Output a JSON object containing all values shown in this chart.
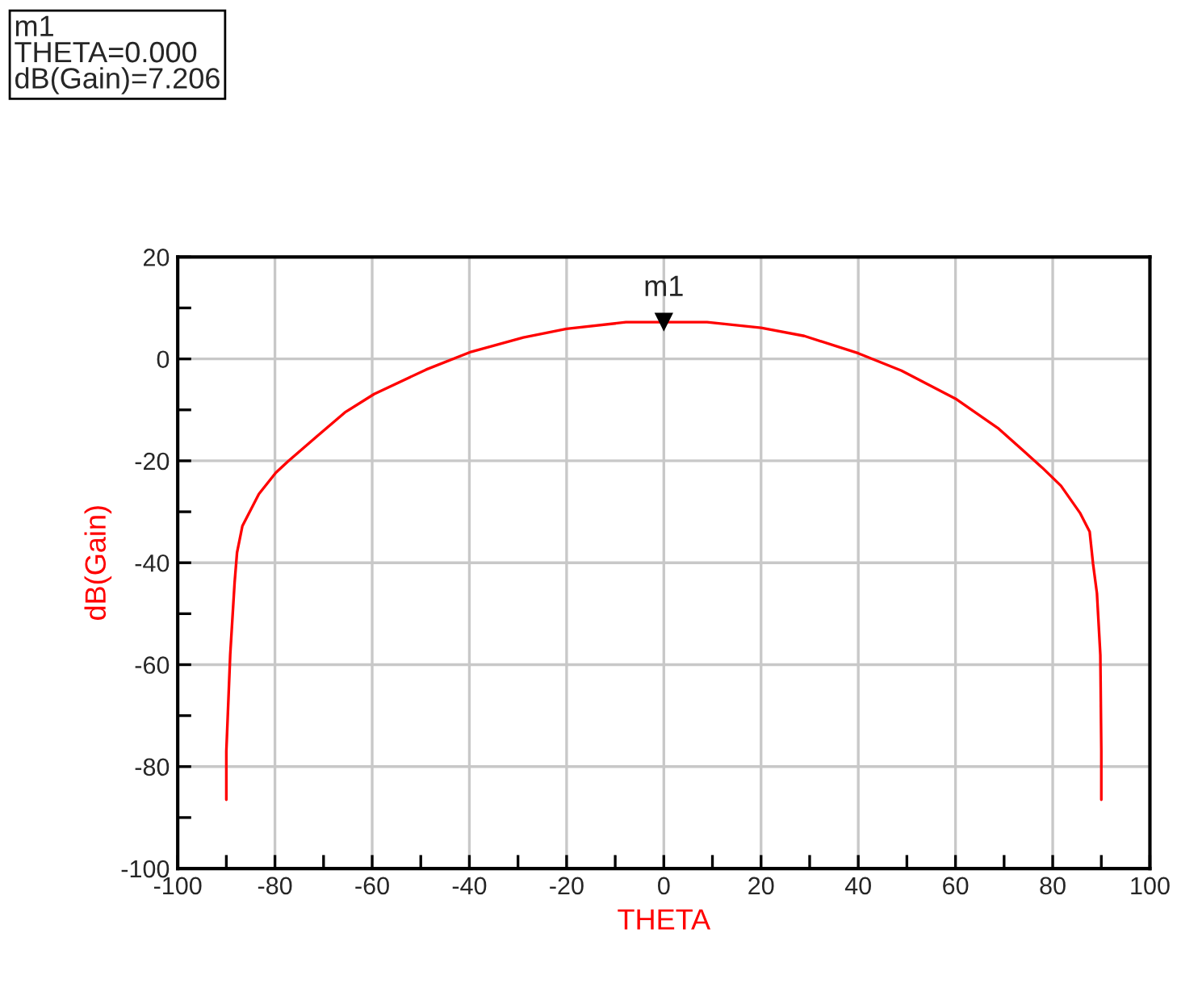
{
  "chart_data": {
    "type": "line",
    "xlabel": "THETA",
    "ylabel": "dB(Gain)",
    "x": [
      -90,
      -90,
      -89.2,
      -88.3,
      -87.8,
      -86.7,
      -83.3,
      -79.8,
      -77.2,
      -71.1,
      -65.6,
      -59.6,
      -48.9,
      -39.6,
      -28.9,
      -20,
      -7.8,
      0,
      8.9,
      20,
      28.9,
      40,
      48.9,
      60,
      68.9,
      77.8,
      81.7,
      85.6,
      87.6,
      88.3,
      89.1,
      89.8,
      90,
      90
    ],
    "series": [
      {
        "color": "#ff0000",
        "marker": "none",
        "line_style": "solid",
        "values": [
          -86.5,
          -77,
          -58,
          -43.9,
          -38,
          -32.8,
          -26.5,
          -22.3,
          -20,
          -15,
          -10.5,
          -6.9,
          -2.1,
          1.4,
          4.2,
          5.9,
          7.2,
          7.206,
          7.2,
          6.1,
          4.5,
          1.1,
          -2.3,
          -7.8,
          -13.7,
          -21.3,
          -24.9,
          -30.2,
          -33.9,
          -40.2,
          -46,
          -58.1,
          -77,
          -86.5
        ]
      },
      {
        "type": "scatter",
        "color": "#000000",
        "marker": "triangle",
        "x": [
          0
        ],
        "values": [
          7.206
        ]
      }
    ],
    "annotations": [
      {
        "text": "m1",
        "x": 0,
        "y": 7.206
      },
      "m1\nTHETA=0.000\ndB(Gain)=7.206"
    ],
    "xlim": [
      -100,
      100
    ],
    "ylim": [
      -100,
      20
    ],
    "xticks": [
      -100,
      {
        "value": -90,
        "label": null
      },
      -80,
      {
        "value": -70,
        "label": null
      },
      -60,
      {
        "value": -50,
        "label": null
      },
      -40,
      {
        "value": -30,
        "label": null
      },
      -20,
      {
        "value": -10,
        "label": null
      },
      0,
      {
        "value": 10,
        "label": null
      },
      20,
      {
        "value": 30,
        "label": null
      },
      40,
      {
        "value": 50,
        "label": null
      },
      60,
      {
        "value": 70,
        "label": null
      },
      80,
      {
        "value": 90,
        "label": null
      },
      100
    ],
    "yticks": [
      -100,
      {
        "value": -90,
        "label": null
      },
      -80,
      {
        "value": -70,
        "label": null
      },
      -60,
      {
        "value": -50,
        "label": null
      },
      -40,
      {
        "value": -30,
        "label": null
      },
      -20,
      {
        "value": -10,
        "label": null
      },
      0,
      {
        "value": 10,
        "label": null
      },
      20
    ],
    "grid": true,
    "legend": false
  }
}
